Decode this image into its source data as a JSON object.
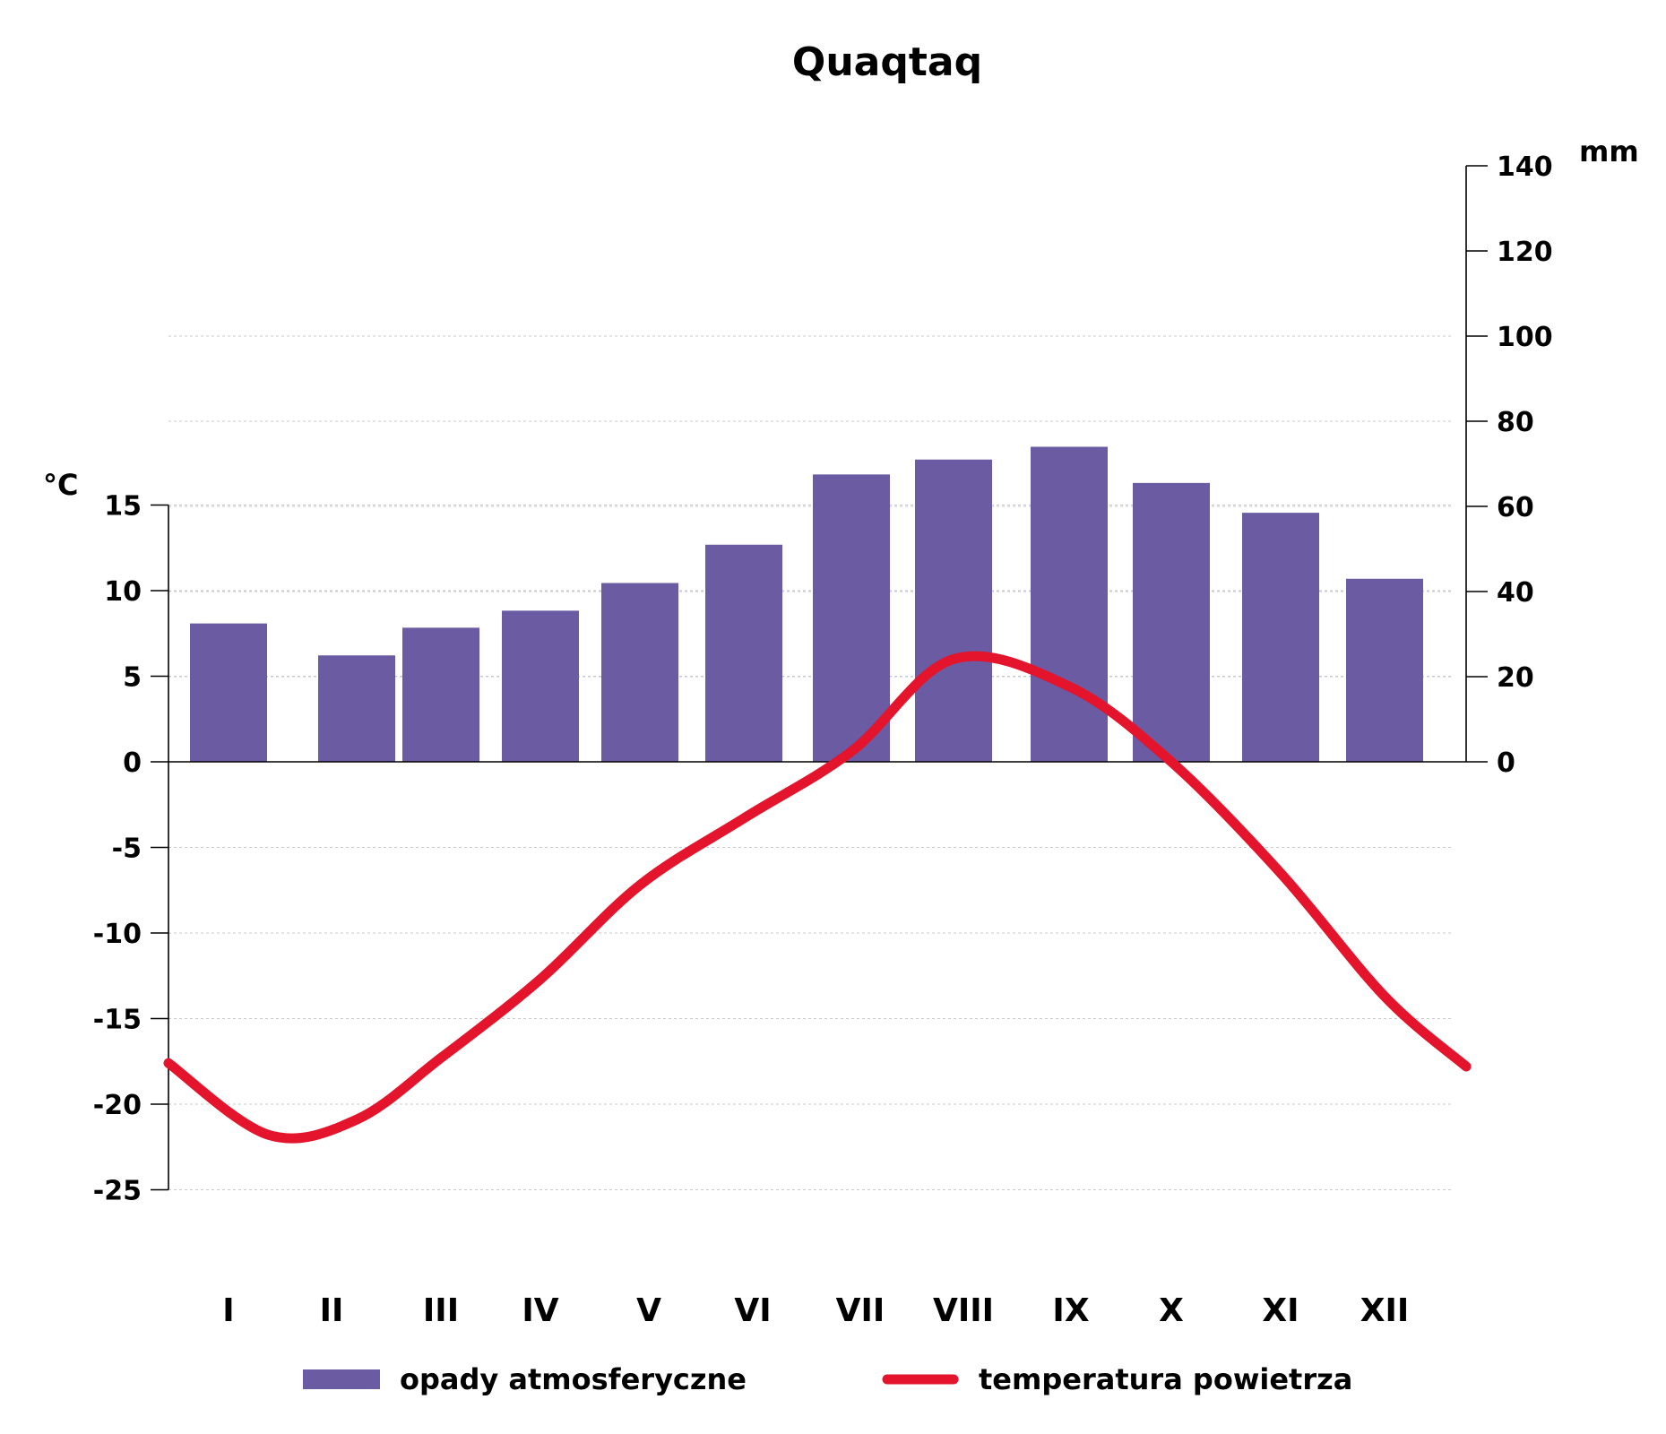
{
  "chart_data": {
    "type": "bar",
    "title": "Quaqtaq",
    "categories": [
      "I",
      "II",
      "III",
      "IV",
      "V",
      "VI",
      "VII",
      "VIII",
      "IX",
      "X",
      "XI",
      "XII"
    ],
    "series": [
      {
        "name": "opady atmosferyczne",
        "type": "bar",
        "axis": "right",
        "values": [
          32.5,
          25,
          31.5,
          35.5,
          42,
          51,
          67.5,
          71,
          74,
          65.5,
          58.5,
          43
        ]
      },
      {
        "name": "temperatura powietrza",
        "type": "line",
        "axis": "left",
        "values": [
          -21.8,
          -20.9,
          -17.3,
          -12.7,
          -7.2,
          -3.3,
          0.6,
          6.0,
          4.4,
          0.0,
          -6.5,
          -13.7
        ]
      }
    ],
    "left_axis": {
      "label": "°C",
      "ylim": [
        -25,
        15
      ],
      "ticks": [
        15,
        10,
        5,
        0,
        -5,
        -10,
        -15,
        -20,
        -25
      ]
    },
    "right_axis": {
      "label": "mm",
      "ylim": [
        0,
        140
      ],
      "ticks": [
        140,
        120,
        100,
        80,
        60,
        40,
        20,
        0
      ]
    },
    "grid": true,
    "legend_position": "bottom",
    "colors": {
      "precipitation": "#6a5ba3",
      "temperature": "#e3142b"
    }
  }
}
